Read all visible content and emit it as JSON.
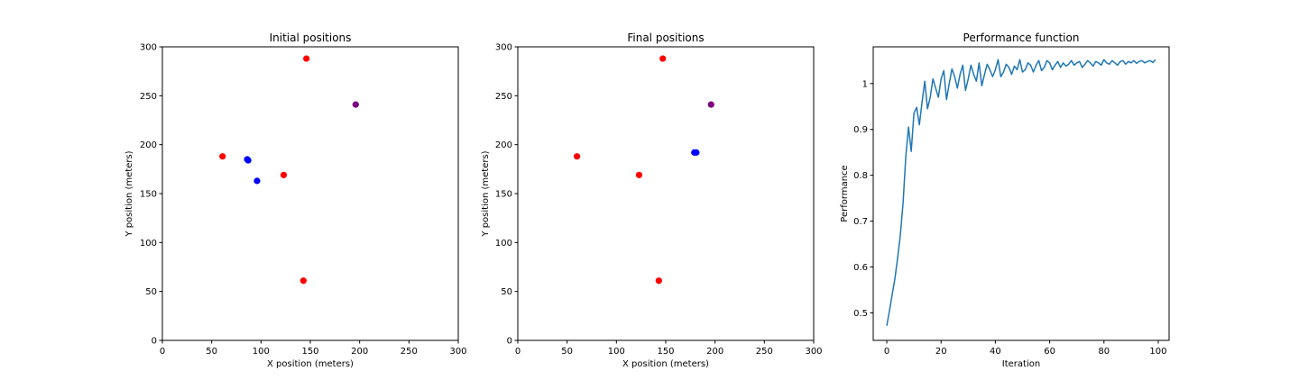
{
  "chart_data": [
    {
      "type": "scatter",
      "title": "Initial positions",
      "xlabel": "X position (meters)",
      "ylabel": "Y position (meters)",
      "xlim": [
        0,
        300
      ],
      "ylim": [
        0,
        300
      ],
      "xticks": [
        0,
        50,
        100,
        150,
        200,
        250,
        300
      ],
      "yticks": [
        0,
        50,
        100,
        150,
        200,
        250,
        300
      ],
      "grid": false,
      "points": [
        {
          "x": 61,
          "y": 188,
          "color": "#ff0000"
        },
        {
          "x": 146,
          "y": 288,
          "color": "#ff0000"
        },
        {
          "x": 123,
          "y": 169,
          "color": "#ff0000"
        },
        {
          "x": 143,
          "y": 61,
          "color": "#ff0000"
        },
        {
          "x": 196,
          "y": 241,
          "color": "#800080"
        },
        {
          "x": 86,
          "y": 185,
          "color": "#0000ff"
        },
        {
          "x": 87,
          "y": 184,
          "color": "#0000ff"
        },
        {
          "x": 96,
          "y": 163,
          "color": "#0000ff"
        }
      ]
    },
    {
      "type": "scatter",
      "title": "Final positions",
      "xlabel": "X position (meters)",
      "ylabel": "Y position (meters)",
      "xlim": [
        0,
        300
      ],
      "ylim": [
        0,
        300
      ],
      "xticks": [
        0,
        50,
        100,
        150,
        200,
        250,
        300
      ],
      "yticks": [
        0,
        50,
        100,
        150,
        200,
        250,
        300
      ],
      "grid": false,
      "points": [
        {
          "x": 60,
          "y": 188,
          "color": "#ff0000"
        },
        {
          "x": 147,
          "y": 288,
          "color": "#ff0000"
        },
        {
          "x": 123,
          "y": 169,
          "color": "#ff0000"
        },
        {
          "x": 143,
          "y": 61,
          "color": "#ff0000"
        },
        {
          "x": 196,
          "y": 241,
          "color": "#800080"
        },
        {
          "x": 179,
          "y": 192,
          "color": "#0000ff"
        },
        {
          "x": 181,
          "y": 192,
          "color": "#0000ff"
        }
      ]
    },
    {
      "type": "line",
      "title": "Performance function",
      "xlabel": "Iteration",
      "ylabel": "Performance",
      "xlim": [
        -5,
        104
      ],
      "ylim": [
        0.44,
        1.08
      ],
      "xticks": [
        0,
        20,
        40,
        60,
        80,
        100
      ],
      "yticks": [
        0.5,
        0.6,
        0.7,
        0.8,
        0.9,
        1.0
      ],
      "grid": false,
      "series": [
        {
          "color": "#1f77b4",
          "x": [
            0,
            1,
            2,
            3,
            4,
            5,
            6,
            7,
            8,
            9,
            10,
            11,
            12,
            13,
            14,
            15,
            16,
            17,
            18,
            19,
            20,
            21,
            22,
            23,
            24,
            25,
            26,
            27,
            28,
            29,
            30,
            31,
            32,
            33,
            34,
            35,
            36,
            37,
            38,
            39,
            40,
            41,
            42,
            43,
            44,
            45,
            46,
            47,
            48,
            49,
            50,
            51,
            52,
            53,
            54,
            55,
            56,
            57,
            58,
            59,
            60,
            61,
            62,
            63,
            64,
            65,
            66,
            67,
            68,
            69,
            70,
            71,
            72,
            73,
            74,
            75,
            76,
            77,
            78,
            79,
            80,
            81,
            82,
            83,
            84,
            85,
            86,
            87,
            88,
            89,
            90,
            91,
            92,
            93,
            94,
            95,
            96,
            97,
            98,
            99
          ],
          "values": [
            0.472,
            0.505,
            0.54,
            0.575,
            0.62,
            0.67,
            0.74,
            0.84,
            0.905,
            0.852,
            0.935,
            0.948,
            0.91,
            0.96,
            1.005,
            0.945,
            0.97,
            1.01,
            0.99,
            0.97,
            1.01,
            1.028,
            0.965,
            1.0,
            1.032,
            1.015,
            0.99,
            1.02,
            1.04,
            0.985,
            1.01,
            1.04,
            1.02,
            1.005,
            1.045,
            0.995,
            1.02,
            1.042,
            1.03,
            1.015,
            1.03,
            1.052,
            1.015,
            1.025,
            1.042,
            1.035,
            1.02,
            1.038,
            1.03,
            1.052,
            1.025,
            1.03,
            1.045,
            1.04,
            1.025,
            1.04,
            1.05,
            1.028,
            1.035,
            1.05,
            1.045,
            1.03,
            1.04,
            1.048,
            1.035,
            1.045,
            1.038,
            1.042,
            1.05,
            1.04,
            1.045,
            1.048,
            1.035,
            1.042,
            1.05,
            1.045,
            1.038,
            1.048,
            1.045,
            1.04,
            1.052,
            1.045,
            1.042,
            1.05,
            1.045,
            1.04,
            1.048,
            1.05,
            1.042,
            1.048,
            1.045,
            1.05,
            1.044,
            1.048,
            1.05,
            1.045,
            1.048,
            1.05,
            1.046,
            1.052
          ]
        }
      ]
    }
  ]
}
